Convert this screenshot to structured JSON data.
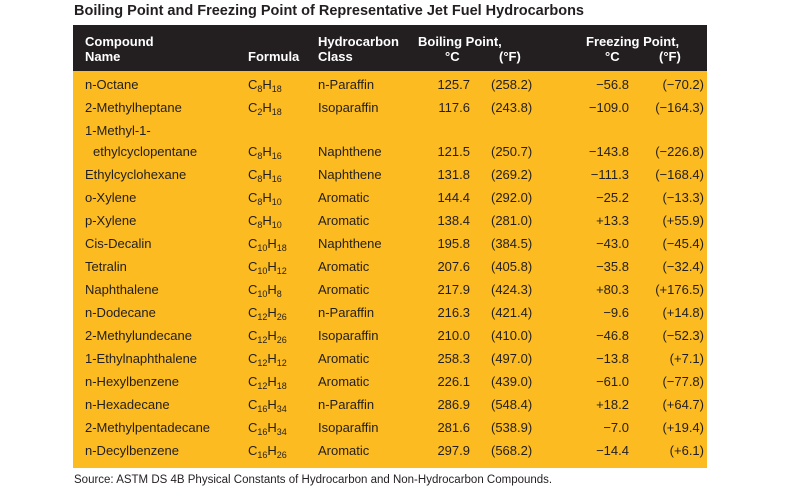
{
  "title": "Boiling Point and Freezing Point of Representative Jet Fuel Hydrocarbons",
  "header": {
    "compound_line1": "Compound",
    "compound_line2": "Name",
    "formula": "Formula",
    "class_line1": "Hydrocarbon",
    "class_line2": "Class",
    "boiling_line1": "Boiling Point,",
    "freezing_line1": "Freezing Point,",
    "unit_c": "°C",
    "unit_f": "(°F)"
  },
  "rows": [
    {
      "name": "n-Octane",
      "formula": {
        "c": "8",
        "h": "18"
      },
      "class": "n-Paraffin",
      "bp_c": "125.7",
      "bp_f": "(258.2)",
      "fp_c": "−56.8",
      "fp_f": "(−70.2)"
    },
    {
      "name": "2-Methylheptane",
      "formula": {
        "c": "2",
        "h": "18"
      },
      "class": "Isoparaffin",
      "bp_c": "117.6",
      "bp_f": "(243.8)",
      "fp_c": "−109.0",
      "fp_f": "(−164.3)"
    },
    {
      "name_line1": "1-Methyl-1-",
      "name": "ethylcyclopentane",
      "formula": {
        "c": "8",
        "h": "16"
      },
      "class": "Naphthene",
      "bp_c": "121.5",
      "bp_f": "(250.7)",
      "fp_c": "−143.8",
      "fp_f": "(−226.8)"
    },
    {
      "name": "Ethylcyclohexane",
      "formula": {
        "c": "8",
        "h": "16"
      },
      "class": "Naphthene",
      "bp_c": "131.8",
      "bp_f": "(269.2)",
      "fp_c": "−111.3",
      "fp_f": "(−168.4)"
    },
    {
      "name": "o-Xylene",
      "formula": {
        "c": "8",
        "h": "10"
      },
      "class": "Aromatic",
      "bp_c": "144.4",
      "bp_f": "(292.0)",
      "fp_c": "−25.2",
      "fp_f": "(−13.3)"
    },
    {
      "name": "p-Xylene",
      "formula": {
        "c": "8",
        "h": "10"
      },
      "class": "Aromatic",
      "bp_c": "138.4",
      "bp_f": "(281.0)",
      "fp_c": "+13.3",
      "fp_f": "(+55.9)"
    },
    {
      "name": "Cis-Decalin",
      "formula": {
        "c": "10",
        "h": "18"
      },
      "class": "Naphthene",
      "bp_c": "195.8",
      "bp_f": "(384.5)",
      "fp_c": "−43.0",
      "fp_f": "(−45.4)"
    },
    {
      "name": "Tetralin",
      "formula": {
        "c": "10",
        "h": "12"
      },
      "class": "Aromatic",
      "bp_c": "207.6",
      "bp_f": "(405.8)",
      "fp_c": "−35.8",
      "fp_f": "(−32.4)"
    },
    {
      "name": "Naphthalene",
      "formula": {
        "c": "10",
        "h": "8"
      },
      "class": "Aromatic",
      "bp_c": "217.9",
      "bp_f": "(424.3)",
      "fp_c": "+80.3",
      "fp_f": "(+176.5)"
    },
    {
      "name": "n-Dodecane",
      "formula": {
        "c": "12",
        "h": "26"
      },
      "class": "n-Paraffin",
      "bp_c": "216.3",
      "bp_f": "(421.4)",
      "fp_c": "−9.6",
      "fp_f": "(+14.8)"
    },
    {
      "name": "2-Methylundecane",
      "formula": {
        "c": "12",
        "h": "26"
      },
      "class": "Isoparaffin",
      "bp_c": "210.0",
      "bp_f": "(410.0)",
      "fp_c": "−46.8",
      "fp_f": "(−52.3)"
    },
    {
      "name": "1-Ethylnaphthalene",
      "formula": {
        "c": "12",
        "h": "12"
      },
      "class": "Aromatic",
      "bp_c": "258.3",
      "bp_f": "(497.0)",
      "fp_c": "−13.8",
      "fp_f": "(+7.1)"
    },
    {
      "name": "n-Hexylbenzene",
      "formula": {
        "c": "12",
        "h": "18"
      },
      "class": "Aromatic",
      "bp_c": "226.1",
      "bp_f": "(439.0)",
      "fp_c": "−61.0",
      "fp_f": "(−77.8)"
    },
    {
      "name": "n-Hexadecane",
      "formula": {
        "c": "16",
        "h": "34"
      },
      "class": "n-Paraffin",
      "bp_c": "286.9",
      "bp_f": "(548.4)",
      "fp_c": "+18.2",
      "fp_f": "(+64.7)"
    },
    {
      "name": "2-Methylpentadecane",
      "formula": {
        "c": "16",
        "h": "34"
      },
      "class": "Isoparaffin",
      "bp_c": "281.6",
      "bp_f": "(538.9)",
      "fp_c": "−7.0",
      "fp_f": "(+19.4)"
    },
    {
      "name": "n-Decylbenzene",
      "formula": {
        "c": "16",
        "h": "26"
      },
      "class": "Aromatic",
      "bp_c": "297.9",
      "bp_f": "(568.2)",
      "fp_c": "−14.4",
      "fp_f": "(+6.1)"
    }
  ],
  "source": "Source:  ASTM DS 4B Physical Constants of Hydrocarbon and Non-Hydrocarbon Compounds.",
  "colors": {
    "header_bg": "#231f20",
    "table_bg": "#fbbb21",
    "text": "#231f20"
  }
}
